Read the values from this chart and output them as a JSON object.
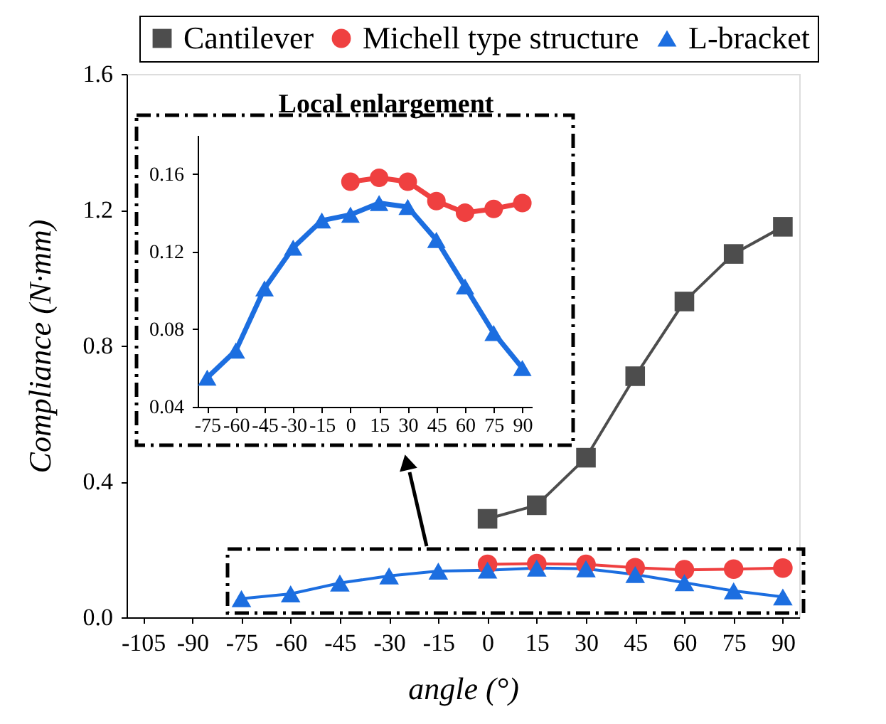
{
  "chart_data": [
    {
      "type": "line",
      "xlabel": "angle (°)",
      "ylabel": "Compliance (N·mm)",
      "xlim": [
        -110,
        95
      ],
      "ylim": [
        0,
        1.6
      ],
      "xticks": [
        -105,
        -90,
        -75,
        -60,
        -45,
        -30,
        -15,
        0,
        15,
        30,
        45,
        60,
        75,
        90
      ],
      "yticks": [
        {
          "value": 0,
          "label": "0.0"
        },
        0.4,
        0.8,
        1.2,
        1.6
      ],
      "grid": false,
      "legend": "top",
      "series": [
        {
          "name": "Cantilever",
          "color": "#4d4d4d",
          "marker": "square",
          "x": [
            0,
            15,
            30,
            45,
            60,
            75,
            90
          ],
          "values": [
            0.29,
            0.33,
            0.47,
            0.71,
            0.93,
            1.07,
            1.15
          ]
        },
        {
          "name": "Michell type structure",
          "color": "#ef4040",
          "marker": "circle",
          "x": [
            0,
            15,
            30,
            45,
            60,
            75,
            90
          ],
          "values": [
            0.156,
            0.158,
            0.156,
            0.146,
            0.14,
            0.142,
            0.145
          ]
        },
        {
          "name": "L-bracket",
          "color": "#1c6ee0",
          "marker": "triangle",
          "x": [
            -75,
            -60,
            -45,
            -30,
            -15,
            0,
            15,
            30,
            45,
            60,
            75,
            90
          ],
          "values": [
            0.055,
            0.069,
            0.101,
            0.122,
            0.136,
            0.139,
            0.145,
            0.143,
            0.126,
            0.102,
            0.078,
            0.06
          ]
        }
      ]
    },
    {
      "type": "line",
      "title": "Local enlargement",
      "xlim": [
        -80,
        95
      ],
      "ylim": [
        0.04,
        0.18
      ],
      "xticks": [
        -75,
        -60,
        -45,
        -30,
        -15,
        0,
        15,
        30,
        45,
        60,
        75,
        90
      ],
      "yticks": [
        0.04,
        0.08,
        0.12,
        0.16
      ],
      "grid": false,
      "series": [
        {
          "color": "#ef4040",
          "marker": "circle",
          "x": [
            0,
            15,
            30,
            45,
            60,
            75,
            90
          ],
          "values": [
            0.156,
            0.158,
            0.156,
            0.146,
            0.14,
            0.142,
            0.145
          ]
        },
        {
          "color": "#1c6ee0",
          "marker": "triangle",
          "x": [
            -75,
            -60,
            -45,
            -30,
            -15,
            0,
            15,
            30,
            45,
            60,
            75,
            90
          ],
          "values": [
            0.055,
            0.069,
            0.101,
            0.122,
            0.136,
            0.139,
            0.145,
            0.143,
            0.126,
            0.102,
            0.078,
            0.06
          ]
        }
      ]
    }
  ]
}
